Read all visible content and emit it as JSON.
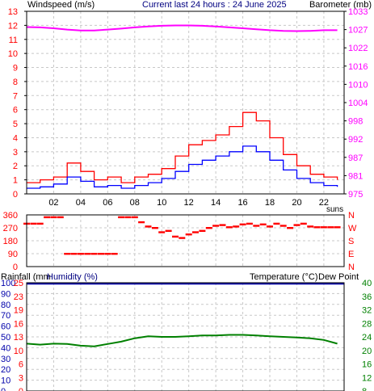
{
  "header": {
    "wind_label": "Windspeed (m/s)",
    "title": "Current last 24 hours : 24 June 2025",
    "baro_label": "Barometer (mb)"
  },
  "colors": {
    "wind_gust": "#ff0000",
    "wind_avg": "#0000ff",
    "barometer": "#ff00ff",
    "direction": "#ff0000",
    "rain": "#ff0000",
    "humidity": "#0000aa",
    "temperature": "#008000",
    "dewpoint": "#ff00ff",
    "grid": "#c8c8c8"
  },
  "sun_label": "suns",
  "bottom_legend": {
    "rainfall": "Rainfall (mm",
    "humidity": "Humidity (%)",
    "temperature": "Temperature (°C)",
    "dewpoint": "Dew Point"
  },
  "chart_data": [
    {
      "type": "line",
      "title": "Current last 24 hours : 24 June 2025",
      "x_ticks": [
        "02",
        "04",
        "06",
        "08",
        "10",
        "12",
        "14",
        "16",
        "18",
        "20",
        "22"
      ],
      "x_range": [
        0,
        23.5
      ],
      "left_axis": {
        "label": "Windspeed (m/s)",
        "ticks": [
          0,
          1,
          2,
          3,
          4,
          5,
          6,
          7,
          8,
          9,
          10,
          11,
          12,
          13
        ],
        "range": [
          0,
          13
        ]
      },
      "right_axis": {
        "label": "Barometer (mb)",
        "ticks": [
          975,
          981,
          987,
          992,
          998,
          1004,
          1010,
          1016,
          1022,
          1027,
          1033
        ],
        "range": [
          975,
          1033
        ]
      },
      "series": [
        {
          "name": "Windspeed gust",
          "axis": "left",
          "color": "red",
          "x": [
            0,
            1,
            2,
            3,
            4,
            5,
            6,
            7,
            8,
            9,
            10,
            11,
            12,
            13,
            14,
            15,
            16,
            17,
            18,
            19,
            20,
            21,
            22,
            23
          ],
          "y": [
            0.8,
            1.0,
            1.2,
            2.2,
            1.6,
            1.0,
            1.2,
            0.8,
            1.2,
            1.4,
            1.8,
            2.7,
            3.5,
            3.8,
            4.2,
            4.8,
            5.8,
            5.2,
            4.0,
            2.8,
            2.0,
            1.4,
            1.2,
            1.0
          ]
        },
        {
          "name": "Windspeed",
          "axis": "left",
          "color": "blue",
          "x": [
            0,
            1,
            2,
            3,
            4,
            5,
            6,
            7,
            8,
            9,
            10,
            11,
            12,
            13,
            14,
            15,
            16,
            17,
            18,
            19,
            20,
            21,
            22,
            23
          ],
          "y": [
            0.4,
            0.5,
            0.7,
            1.2,
            0.9,
            0.5,
            0.6,
            0.4,
            0.6,
            0.8,
            1.1,
            1.6,
            2.1,
            2.4,
            2.7,
            3.0,
            3.4,
            3.0,
            2.4,
            1.7,
            1.1,
            0.8,
            0.6,
            0.5
          ]
        },
        {
          "name": "Barometer",
          "axis": "right",
          "color": "magenta",
          "x": [
            0,
            1,
            2,
            3,
            4,
            5,
            6,
            7,
            8,
            9,
            10,
            11,
            12,
            13,
            14,
            15,
            16,
            17,
            18,
            19,
            20,
            21,
            22,
            23
          ],
          "y": [
            1028.0,
            1027.9,
            1027.6,
            1027.2,
            1026.9,
            1026.9,
            1027.2,
            1027.5,
            1027.9,
            1028.2,
            1028.4,
            1028.5,
            1028.5,
            1028.4,
            1028.2,
            1027.9,
            1027.6,
            1027.3,
            1027.0,
            1026.8,
            1026.7,
            1026.8,
            1027.0,
            1027.0
          ]
        }
      ]
    },
    {
      "type": "scatter",
      "x_range": [
        0,
        23.5
      ],
      "left_axis": {
        "ticks": [
          0,
          45,
          90,
          135,
          180,
          225,
          270,
          315,
          360
        ],
        "tick_labels": [
          0,
          "",
          90,
          "",
          180,
          "",
          270,
          "",
          360
        ],
        "range": [
          0,
          360
        ]
      },
      "right_axis": {
        "tick_labels": [
          "N",
          "E",
          "S",
          "W",
          "N"
        ],
        "values": [
          0,
          90,
          180,
          270,
          360
        ]
      },
      "series": [
        {
          "name": "Wind direction",
          "color": "red",
          "x": [
            0,
            0.5,
            1,
            1.5,
            2,
            2.5,
            3,
            3.5,
            4,
            4.5,
            5,
            5.5,
            6,
            6.5,
            7,
            7.5,
            8,
            8.5,
            9,
            9.5,
            10,
            10.5,
            11,
            11.5,
            12,
            12.5,
            13,
            13.5,
            14,
            14.5,
            15,
            15.5,
            16,
            16.5,
            17,
            17.5,
            18,
            18.5,
            19,
            19.5,
            20,
            20.5,
            21,
            21.5,
            22,
            22.5,
            23
          ],
          "y": [
            300,
            300,
            300,
            345,
            345,
            345,
            90,
            90,
            90,
            90,
            90,
            90,
            90,
            90,
            345,
            345,
            345,
            310,
            280,
            270,
            240,
            250,
            210,
            200,
            225,
            240,
            250,
            270,
            285,
            290,
            275,
            280,
            295,
            300,
            285,
            295,
            280,
            300,
            285,
            270,
            290,
            300,
            280,
            275,
            275,
            275,
            275
          ]
        }
      ]
    },
    {
      "type": "line",
      "x_range": [
        0,
        23.5
      ],
      "left_axis": {
        "labels": [
          "Rainfall (mm",
          "Humidity (%)"
        ],
        "rain_ticks": [
          0,
          3,
          6,
          10,
          13,
          16,
          19,
          23,
          25
        ],
        "humidity_ticks": [
          0,
          10,
          20,
          30,
          40,
          50,
          60,
          70,
          80,
          90,
          100
        ],
        "range": [
          0,
          100
        ]
      },
      "right_axis": {
        "label": "Temperature (°C)",
        "ticks": [
          8,
          12,
          16,
          20,
          24,
          28,
          32,
          36,
          40
        ],
        "range": [
          8,
          40
        ]
      },
      "series": [
        {
          "name": "Humidity",
          "axis": "left",
          "color": "navy",
          "x": [
            0,
            23.5
          ],
          "y": [
            99,
            99
          ]
        },
        {
          "name": "Temperature",
          "axis": "right",
          "color": "green",
          "x": [
            0,
            1,
            2,
            3,
            4,
            5,
            6,
            7,
            8,
            9,
            10,
            11,
            12,
            13,
            14,
            15,
            16,
            17,
            18,
            19,
            20,
            21,
            22,
            23
          ],
          "y": [
            22.0,
            21.7,
            22.0,
            21.9,
            21.4,
            21.2,
            21.9,
            22.6,
            23.6,
            24.2,
            24.0,
            24.0,
            24.2,
            24.4,
            24.4,
            24.6,
            24.6,
            24.4,
            24.2,
            24.0,
            23.8,
            23.6,
            23.1,
            22.0
          ]
        }
      ]
    }
  ]
}
